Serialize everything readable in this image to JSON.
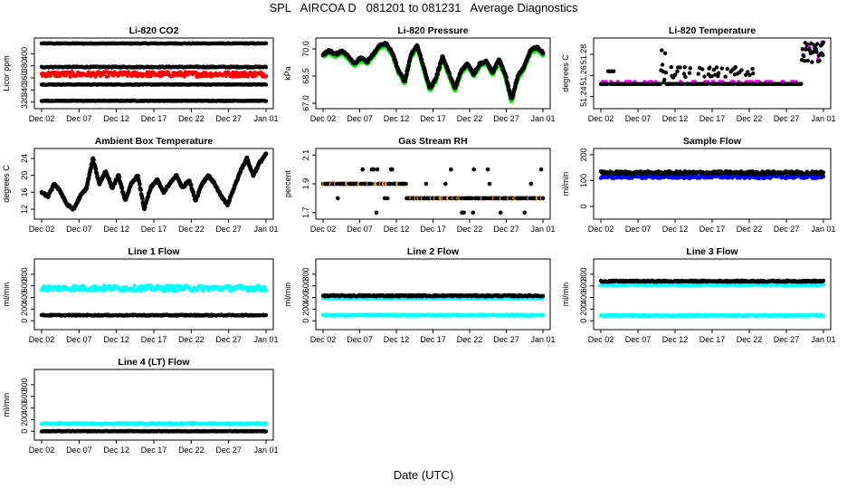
{
  "page": {
    "title": "SPL   AIRCOA D   081201 to 081231   Average Diagnostics",
    "x_axis_title": "Date (UTC)"
  },
  "colors": {
    "black": "#000000",
    "red": "#ff0000",
    "green": "#00ee00",
    "magenta": "#ff00ff",
    "orange": "#ffa500",
    "blue": "#0000ff",
    "cyan": "#00ffff"
  },
  "chart_data": [
    {
      "type": "scatter",
      "title": "Li-820 CO2",
      "ylabel": "Licor ppm",
      "x_ticks": [
        "Dec 02",
        "Dec 07",
        "Dec 12",
        "Dec 17",
        "Dec 22",
        "Dec 27",
        "Jan 01"
      ],
      "y_ticks": [
        320,
        340,
        360,
        380,
        400
      ],
      "ylim": [
        315,
        420
      ],
      "series": [
        {
          "name": "ref-high",
          "color": "black",
          "level": 417,
          "jitter": 0.5
        },
        {
          "name": "ref-mid",
          "color": "black",
          "level": 378,
          "jitter": 0.8
        },
        {
          "name": "sample",
          "color": "red",
          "level": 366,
          "jitter": 4
        },
        {
          "name": "ref-low",
          "color": "black",
          "level": 349,
          "jitter": 0.6
        },
        {
          "name": "ref-bottom",
          "color": "black",
          "level": 322,
          "jitter": 0.5
        }
      ]
    },
    {
      "type": "scatter",
      "title": "Li-820 Pressure",
      "ylabel": "kPa",
      "x_ticks": [
        "Dec 02",
        "Dec 07",
        "Dec 12",
        "Dec 17",
        "Dec 22",
        "Dec 27",
        "Jan 01"
      ],
      "y_ticks": [
        67.0,
        68.5,
        70.0
      ],
      "ylim": [
        66.9,
        70.4
      ],
      "series": [
        {
          "name": "pressure-green",
          "color": "green",
          "offset": -0.12
        },
        {
          "name": "pressure-black",
          "color": "black",
          "offset": 0
        },
        "profile",
        [
          69.7,
          69.9,
          69.7,
          69.9,
          69.6,
          69.2,
          69.5,
          69.3,
          69.7,
          70.2,
          70.3,
          69.8,
          68.8,
          68.2,
          69.7,
          70.2,
          69.0,
          67.8,
          68.4,
          69.6,
          68.7,
          67.8,
          68.8,
          69.2,
          68.6,
          69.2,
          69.3,
          68.7,
          69.4,
          68.6,
          67.2,
          68.5,
          69.0,
          69.9,
          70.1,
          69.8
        ]
      ]
    },
    {
      "type": "scatter",
      "title": "Li-820 Temperature",
      "ylabel": "degrees C",
      "x_ticks": [
        "Dec 02",
        "Dec 07",
        "Dec 12",
        "Dec 17",
        "Dec 22",
        "Dec 27",
        "Jan 01"
      ],
      "y_ticks": [
        51.24,
        51.26,
        51.28
      ],
      "ylim": [
        51.232,
        51.292
      ],
      "series": [
        {
          "name": "temperature",
          "color": "black",
          "base": 51.252
        }
      ]
    },
    {
      "type": "scatter",
      "title": "Ambient Box Temperature",
      "ylabel": "degrees C",
      "x_ticks": [
        "Dec 02",
        "Dec 07",
        "Dec 12",
        "Dec 17",
        "Dec 22",
        "Dec 27",
        "Jan 01"
      ],
      "y_ticks": [
        12,
        16,
        20,
        24
      ],
      "ylim": [
        10.5,
        25.5
      ],
      "series": [
        {
          "name": "ambient",
          "color": "black"
        },
        "profile",
        [
          16,
          15,
          18,
          16,
          13,
          12,
          15,
          17,
          24,
          18,
          21,
          17,
          20,
          14,
          18,
          20,
          12,
          17,
          19,
          16,
          18,
          20,
          17,
          19,
          14,
          18,
          20,
          18,
          15,
          13,
          17,
          21,
          24,
          20,
          23,
          25
        ]
      ]
    },
    {
      "type": "scatter",
      "title": "Gas Stream RH",
      "ylabel": "percent",
      "x_ticks": [
        "Dec 02",
        "Dec 07",
        "Dec 12",
        "Dec 17",
        "Dec 22",
        "Dec 27",
        "Jan 01"
      ],
      "y_ticks": [
        1.7,
        1.9,
        2.1
      ],
      "ylim": [
        1.68,
        2.12
      ],
      "series": [
        {
          "name": "rh-black",
          "color": "black"
        },
        {
          "name": "rh-orange",
          "color": "orange"
        }
      ]
    },
    {
      "type": "scatter",
      "title": "Sample Flow",
      "ylabel": "ml/min",
      "x_ticks": [
        "Dec 02",
        "Dec 07",
        "Dec 12",
        "Dec 17",
        "Dec 22",
        "Dec 27",
        "Jan 01"
      ],
      "y_ticks": [
        0,
        100,
        200
      ],
      "ylim": [
        -35,
        210
      ],
      "series": [
        {
          "name": "sample-blue",
          "color": "blue",
          "level": 115,
          "jitter": 6
        },
        {
          "name": "sample-black",
          "color": "black",
          "level": 130,
          "jitter": 6
        }
      ]
    },
    {
      "type": "scatter",
      "title": "Line 1 Flow",
      "ylabel": "ml/min",
      "x_ticks": [
        "Dec 02",
        "Dec 07",
        "Dec 12",
        "Dec 17",
        "Dec 22",
        "Dec 27",
        "Jan 01"
      ],
      "y_ticks": [
        0,
        200,
        400,
        600,
        800
      ],
      "ylim": [
        -90,
        1000
      ],
      "series": [
        {
          "name": "line1-cyan",
          "color": "cyan",
          "level": 560,
          "jitter": 45
        },
        {
          "name": "line1-black",
          "color": "black",
          "level": 95,
          "jitter": 8
        }
      ]
    },
    {
      "type": "scatter",
      "title": "Line 2 Flow",
      "ylabel": "ml/min",
      "x_ticks": [
        "Dec 02",
        "Dec 07",
        "Dec 12",
        "Dec 17",
        "Dec 22",
        "Dec 27",
        "Jan 01"
      ],
      "y_ticks": [
        0,
        200,
        400,
        600,
        800
      ],
      "ylim": [
        -90,
        1000
      ],
      "series": [
        {
          "name": "line2-cyan-high",
          "color": "cyan",
          "level": 390,
          "jitter": 12
        },
        {
          "name": "line2-black",
          "color": "black",
          "level": 430,
          "jitter": 12
        },
        {
          "name": "line2-cyan-low",
          "color": "cyan",
          "level": 95,
          "jitter": 10
        }
      ]
    },
    {
      "type": "scatter",
      "title": "Line 3 Flow",
      "ylabel": "ml/min",
      "x_ticks": [
        "Dec 02",
        "Dec 07",
        "Dec 12",
        "Dec 17",
        "Dec 22",
        "Dec 27",
        "Jan 01"
      ],
      "y_ticks": [
        0,
        200,
        400,
        600,
        800
      ],
      "ylim": [
        -90,
        1000
      ],
      "series": [
        {
          "name": "line3-cyan-high",
          "color": "cyan",
          "level": 620,
          "jitter": 14
        },
        {
          "name": "line3-black",
          "color": "black",
          "level": 680,
          "jitter": 12
        },
        {
          "name": "line3-cyan-low",
          "color": "cyan",
          "level": 90,
          "jitter": 10
        }
      ]
    },
    {
      "type": "scatter",
      "title": "Line 4 (LT) Flow",
      "ylabel": "ml/min",
      "x_ticks": [
        "Dec 02",
        "Dec 07",
        "Dec 12",
        "Dec 17",
        "Dec 22",
        "Dec 27",
        "Jan 01"
      ],
      "y_ticks": [
        0,
        200,
        400,
        600,
        800
      ],
      "ylim": [
        -90,
        1000
      ],
      "series": [
        {
          "name": "line4-cyan",
          "color": "cyan",
          "level": 130,
          "jitter": 10
        },
        {
          "name": "line4-black",
          "color": "black",
          "level": 0,
          "jitter": 5
        }
      ]
    }
  ]
}
